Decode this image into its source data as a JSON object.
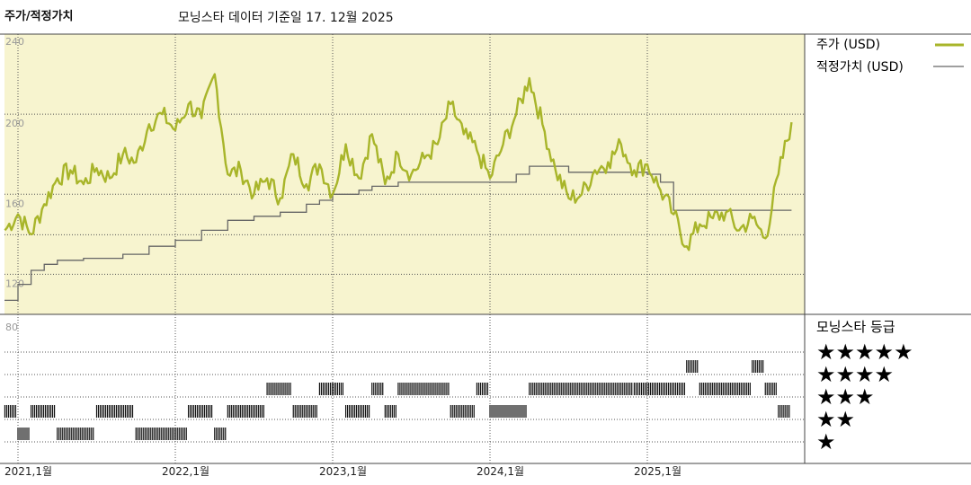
{
  "header": {
    "title": "주가/적정가치",
    "subtitle": "모닝스타 데이터 기준일 17. 12월 2025"
  },
  "legend": {
    "price_label": "주가 (USD)",
    "fair_label": "적정가치 (USD)",
    "price_color": "#a8b52a",
    "fair_color": "#666666"
  },
  "rating_panel": {
    "title": "모닝스타 등급",
    "levels": [
      "★★★★★",
      "★★★★",
      "★★★",
      "★★",
      "★"
    ]
  },
  "chart_data": [
    {
      "type": "line",
      "title": "주가/적정가치",
      "y_ticks": [
        "240",
        "200",
        "160",
        "120"
      ],
      "ylim": [
        100,
        240
      ],
      "x_tick_labels": [
        "2021,1월",
        "2022,1월",
        "2023,1월",
        "2024,1월",
        "2025,1월"
      ],
      "background": "#f7f4cf",
      "series": [
        {
          "name": "주가 (USD)",
          "points": [
            [
              "2020-12",
              142
            ],
            [
              "2021-01",
              150
            ],
            [
              "2021-02",
              140
            ],
            [
              "2021-03",
              155
            ],
            [
              "2021-04",
              168
            ],
            [
              "2021-05",
              172
            ],
            [
              "2021-06",
              165
            ],
            [
              "2021-07",
              173
            ],
            [
              "2021-08",
              168
            ],
            [
              "2021-09",
              180
            ],
            [
              "2021-10",
              176
            ],
            [
              "2021-11",
              195
            ],
            [
              "2021-12",
              200
            ],
            [
              "2022-01",
              192
            ],
            [
              "2022-02",
              205
            ],
            [
              "2022-03",
              198
            ],
            [
              "2022-04",
              220
            ],
            [
              "2022-05",
              170
            ],
            [
              "2022-06",
              172
            ],
            [
              "2022-07",
              160
            ],
            [
              "2022-08",
              168
            ],
            [
              "2022-09",
              158
            ],
            [
              "2022-10",
              180
            ],
            [
              "2022-11",
              165
            ],
            [
              "2022-12",
              175
            ],
            [
              "2023-01",
              160
            ],
            [
              "2023-02",
              185
            ],
            [
              "2023-03",
              168
            ],
            [
              "2023-04",
              190
            ],
            [
              "2023-05",
              165
            ],
            [
              "2023-06",
              180
            ],
            [
              "2023-07",
              170
            ],
            [
              "2023-08",
              178
            ],
            [
              "2023-09",
              185
            ],
            [
              "2023-10",
              205
            ],
            [
              "2023-11",
              190
            ],
            [
              "2023-12",
              182
            ],
            [
              "2024-01",
              168
            ],
            [
              "2024-02",
              185
            ],
            [
              "2024-03",
              200
            ],
            [
              "2024-04",
              218
            ],
            [
              "2024-05",
              195
            ],
            [
              "2024-06",
              172
            ],
            [
              "2024-07",
              158
            ],
            [
              "2024-08",
              160
            ],
            [
              "2024-09",
              172
            ],
            [
              "2024-10",
              176
            ],
            [
              "2024-11",
              185
            ],
            [
              "2024-12",
              172
            ],
            [
              "2025-01",
              175
            ],
            [
              "2025-02",
              162
            ],
            [
              "2025-03",
              150
            ],
            [
              "2025-04",
              134
            ],
            [
              "2025-05",
              145
            ],
            [
              "2025-06",
              148
            ],
            [
              "2025-07",
              151
            ],
            [
              "2025-08",
              142
            ],
            [
              "2025-09",
              148
            ],
            [
              "2025-10",
              138
            ],
            [
              "2025-11",
              170
            ],
            [
              "2025-12",
              196
            ]
          ]
        },
        {
          "name": "적정가치 (USD)",
          "points": [
            [
              "2020-12",
              107
            ],
            [
              "2021-01",
              115
            ],
            [
              "2021-02",
              122
            ],
            [
              "2021-03",
              125
            ],
            [
              "2021-04",
              127
            ],
            [
              "2021-06",
              128
            ],
            [
              "2021-09",
              130
            ],
            [
              "2021-11",
              134
            ],
            [
              "2022-01",
              137
            ],
            [
              "2022-03",
              142
            ],
            [
              "2022-05",
              147
            ],
            [
              "2022-07",
              149
            ],
            [
              "2022-09",
              151
            ],
            [
              "2022-11",
              155
            ],
            [
              "2022-12",
              157
            ],
            [
              "2023-01",
              160
            ],
            [
              "2023-03",
              162
            ],
            [
              "2023-04",
              164
            ],
            [
              "2023-06",
              166
            ],
            [
              "2023-09",
              166
            ],
            [
              "2024-01",
              166
            ],
            [
              "2024-03",
              170
            ],
            [
              "2024-04",
              174
            ],
            [
              "2024-06",
              174
            ],
            [
              "2024-07",
              171
            ],
            [
              "2024-12",
              171
            ],
            [
              "2025-01",
              170
            ],
            [
              "2025-02",
              166
            ],
            [
              "2025-03",
              152
            ],
            [
              "2025-06",
              152
            ],
            [
              "2025-12",
              152
            ]
          ]
        }
      ]
    },
    {
      "type": "bar",
      "title": "모닝스타 등급",
      "y_ticks": [
        "80"
      ],
      "categories": [
        "★★★★★",
        "★★★★",
        "★★★",
        "★★",
        "★"
      ],
      "rating_segments": [
        {
          "stars": 2,
          "start": "2020-12",
          "end": "2021-01"
        },
        {
          "stars": 1,
          "start": "2021-01",
          "end": "2021-02"
        },
        {
          "stars": 2,
          "start": "2021-02",
          "end": "2021-04"
        },
        {
          "stars": 1,
          "start": "2021-04",
          "end": "2021-07"
        },
        {
          "stars": 2,
          "start": "2021-07",
          "end": "2021-10"
        },
        {
          "stars": 1,
          "start": "2021-10",
          "end": "2022-02"
        },
        {
          "stars": 2,
          "start": "2022-02",
          "end": "2022-04"
        },
        {
          "stars": 1,
          "start": "2022-04",
          "end": "2022-05"
        },
        {
          "stars": 2,
          "start": "2022-05",
          "end": "2022-08"
        },
        {
          "stars": 3,
          "start": "2022-08",
          "end": "2022-10"
        },
        {
          "stars": 2,
          "start": "2022-10",
          "end": "2022-12"
        },
        {
          "stars": 3,
          "start": "2022-12",
          "end": "2023-02"
        },
        {
          "stars": 2,
          "start": "2023-02",
          "end": "2023-04"
        },
        {
          "stars": 3,
          "start": "2023-04",
          "end": "2023-05"
        },
        {
          "stars": 2,
          "start": "2023-05",
          "end": "2023-06"
        },
        {
          "stars": 3,
          "start": "2023-06",
          "end": "2023-10"
        },
        {
          "stars": 2,
          "start": "2023-10",
          "end": "2023-12"
        },
        {
          "stars": 3,
          "start": "2023-12",
          "end": "2024-01"
        },
        {
          "stars": 2,
          "start": "2024-01",
          "end": "2024-04"
        },
        {
          "stars": 3,
          "start": "2024-04",
          "end": "2024-12"
        },
        {
          "stars": 3,
          "start": "2024-12",
          "end": "2025-04"
        },
        {
          "stars": 4,
          "start": "2025-04",
          "end": "2025-05"
        },
        {
          "stars": 3,
          "start": "2025-05",
          "end": "2025-09"
        },
        {
          "stars": 4,
          "start": "2025-09",
          "end": "2025-10"
        },
        {
          "stars": 3,
          "start": "2025-10",
          "end": "2025-11"
        },
        {
          "stars": 2,
          "start": "2025-11",
          "end": "2025-12"
        }
      ]
    }
  ]
}
